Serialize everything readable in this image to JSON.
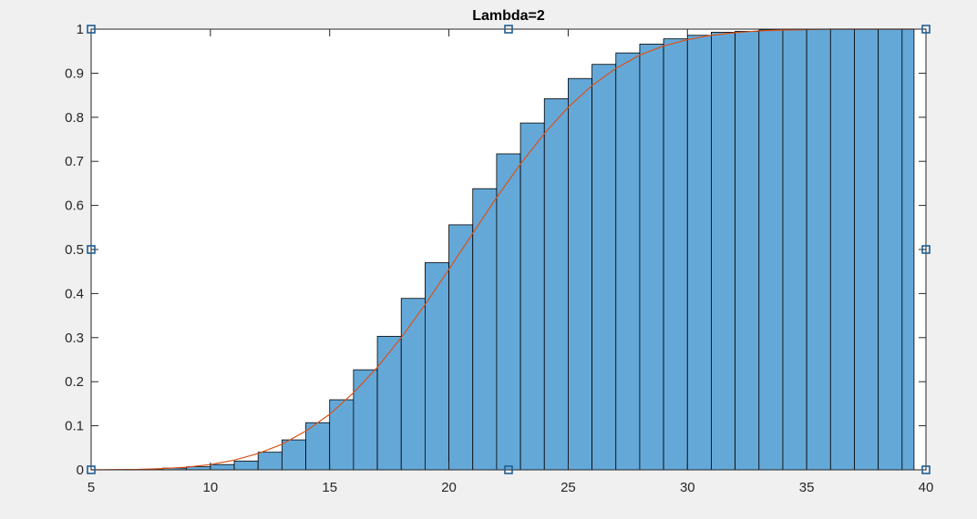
{
  "chart_data": {
    "type": "bar",
    "title": "Lambda=2",
    "xlabel": "",
    "ylabel": "",
    "xlim": [
      5,
      40
    ],
    "ylim": [
      0,
      1
    ],
    "x_ticks": [
      5,
      10,
      15,
      20,
      25,
      30,
      35,
      40
    ],
    "y_ticks": [
      0,
      0.1,
      0.2,
      0.3,
      0.4,
      0.5,
      0.6,
      0.7,
      0.8,
      0.9,
      1
    ],
    "grid": false,
    "bin_edges": [
      5,
      6,
      7,
      8,
      9,
      10,
      11,
      12,
      13,
      14,
      15,
      16,
      17,
      18,
      19,
      20,
      21,
      22,
      23,
      24,
      25,
      26,
      27,
      28,
      29,
      30,
      31,
      32,
      33,
      34,
      35,
      36,
      37,
      38,
      39,
      39.5
    ],
    "series": [
      {
        "type": "bar",
        "color": "#64a8d8",
        "values": [
          0,
          0,
          0.001,
          0.004,
          0.007,
          0.012,
          0.02,
          0.04,
          0.068,
          0.107,
          0.159,
          0.227,
          0.303,
          0.389,
          0.47,
          0.556,
          0.638,
          0.717,
          0.787,
          0.842,
          0.888,
          0.92,
          0.946,
          0.966,
          0.978,
          0.986,
          0.993,
          0.995,
          0.998,
          0.999,
          1,
          1,
          1,
          1,
          1
        ]
      },
      {
        "type": "line",
        "color": "#d95319",
        "x": [
          5,
          7,
          8,
          9,
          10,
          11,
          12,
          13,
          14,
          15,
          16,
          17,
          18,
          19,
          20,
          21,
          22,
          23,
          24,
          25,
          26,
          27,
          28,
          29,
          30,
          31,
          32,
          33,
          34,
          35,
          36,
          37,
          38,
          39,
          39.5
        ],
        "y": [
          0,
          0.001,
          0.003,
          0.006,
          0.012,
          0.022,
          0.037,
          0.058,
          0.088,
          0.126,
          0.175,
          0.233,
          0.3,
          0.375,
          0.455,
          0.537,
          0.618,
          0.694,
          0.763,
          0.823,
          0.872,
          0.911,
          0.941,
          0.962,
          0.976,
          0.986,
          0.992,
          0.996,
          0.998,
          0.999,
          1,
          1,
          1,
          1,
          1
        ]
      }
    ]
  },
  "selection_handles": {
    "color": "#1f5e93"
  }
}
